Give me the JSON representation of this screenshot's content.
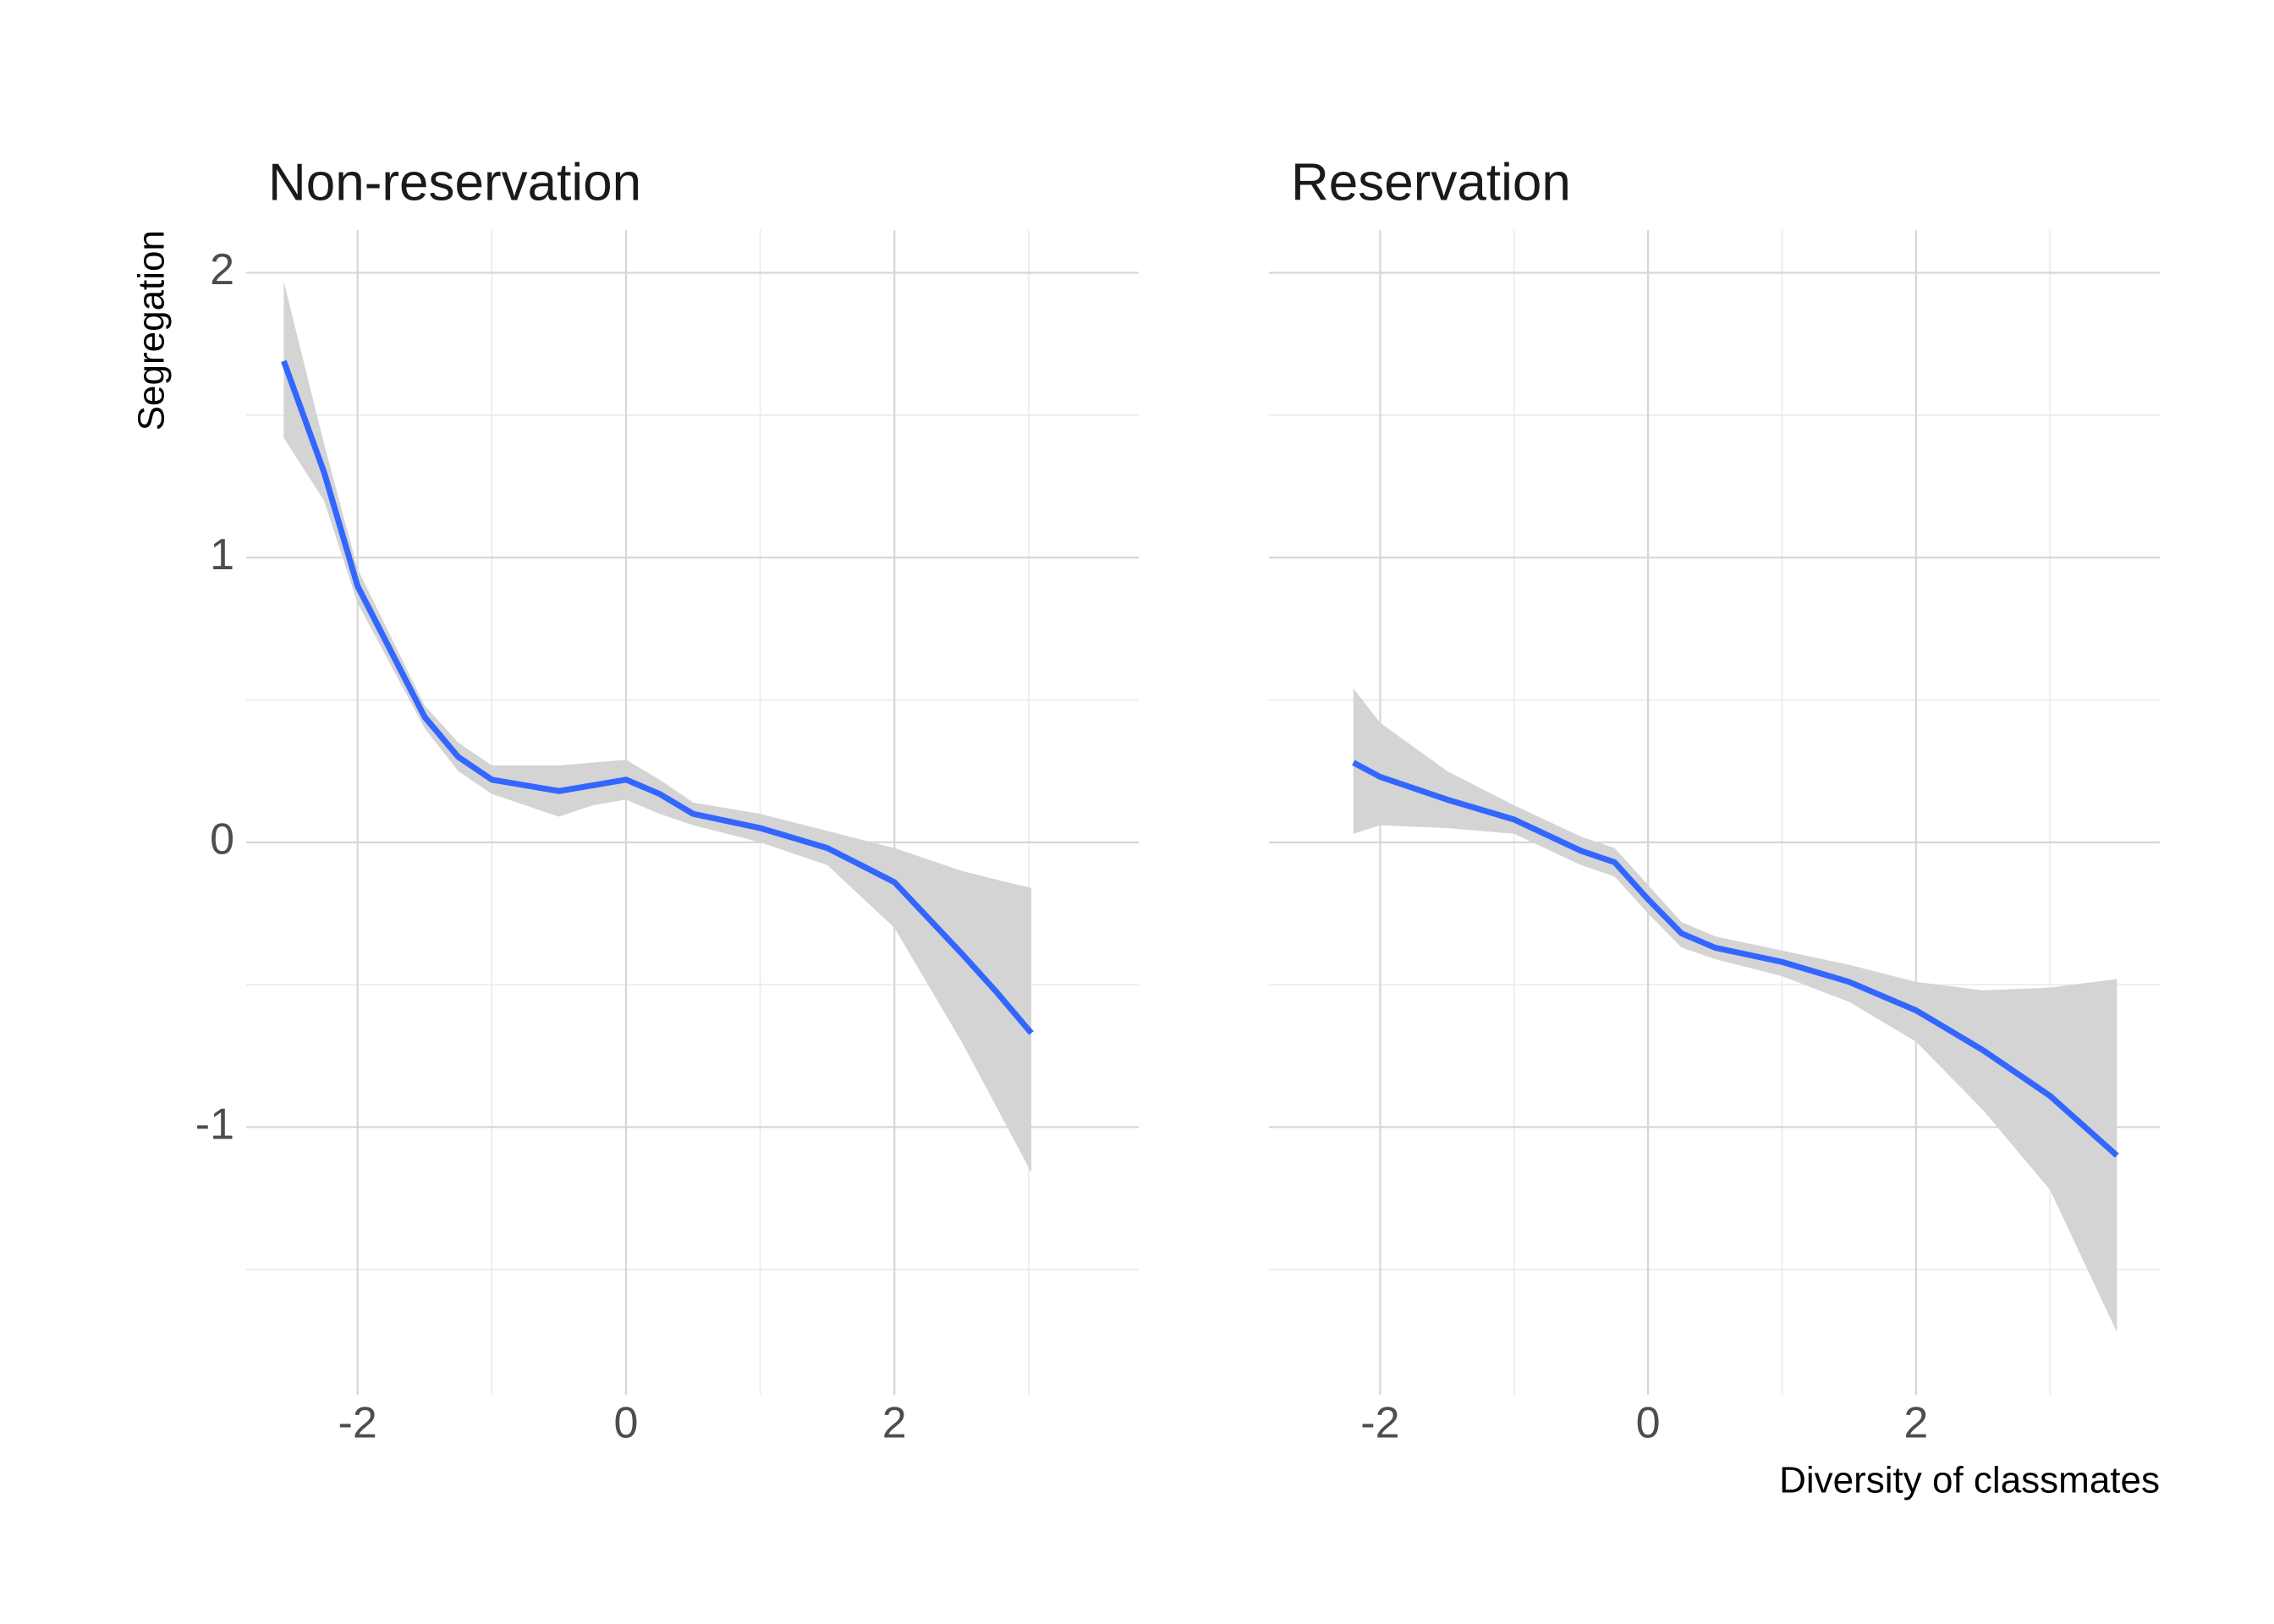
{
  "chart_data": [
    {
      "type": "line",
      "title": "Non-reservation",
      "ylabel": "Segregation",
      "xlim": [
        -2.83,
        3.82
      ],
      "ylim": [
        -1.94,
        2.15
      ],
      "xticks": [
        -2,
        0,
        2
      ],
      "yticks": [
        -1,
        0,
        1,
        2
      ],
      "minor_xticks": [
        -1,
        1,
        3
      ],
      "minor_yticks": [
        -1.5,
        -0.5,
        0.5,
        1.5
      ],
      "show_ytick_labels": true,
      "grid": true,
      "band_color": "#d4d4d4",
      "x": [
        -2.55,
        -2.25,
        -2.0,
        -1.5,
        -1.25,
        -1.0,
        -0.5,
        -0.25,
        0,
        0.25,
        0.5,
        1.0,
        1.5,
        2.0,
        2.5,
        2.75,
        3.02
      ],
      "series": [
        {
          "color": "#3366ff",
          "values": [
            1.69,
            1.3,
            0.9,
            0.44,
            0.3,
            0.22,
            0.18,
            0.2,
            0.22,
            0.17,
            0.1,
            0.05,
            -0.02,
            -0.14,
            -0.39,
            -0.52,
            -0.67
          ],
          "lower": [
            1.42,
            1.2,
            0.84,
            0.4,
            0.25,
            0.17,
            0.09,
            0.13,
            0.15,
            0.1,
            0.06,
            0.0,
            -0.08,
            -0.3,
            -0.7,
            -0.92,
            -1.16
          ],
          "upper": [
            1.97,
            1.4,
            0.96,
            0.48,
            0.35,
            0.27,
            0.27,
            0.28,
            0.29,
            0.22,
            0.14,
            0.1,
            0.04,
            -0.02,
            -0.1,
            -0.13,
            -0.16
          ]
        }
      ]
    },
    {
      "type": "line",
      "title": "Reservation",
      "xlabel": "Diversity of classmates",
      "xlim": [
        -2.83,
        3.82
      ],
      "ylim": [
        -1.94,
        2.15
      ],
      "xticks": [
        -2,
        0,
        2
      ],
      "yticks": [
        -1,
        0,
        1,
        2
      ],
      "minor_xticks": [
        -1,
        1,
        3
      ],
      "minor_yticks": [
        -1.5,
        -0.5,
        0.5,
        1.5
      ],
      "show_ytick_labels": false,
      "grid": true,
      "band_color": "#d4d4d4",
      "x": [
        -2.2,
        -2.0,
        -1.5,
        -1.0,
        -0.5,
        -0.25,
        0,
        0.25,
        0.5,
        1.0,
        1.5,
        2.0,
        2.5,
        3.0,
        3.5
      ],
      "series": [
        {
          "color": "#3366ff",
          "values": [
            0.28,
            0.23,
            0.15,
            0.08,
            -0.03,
            -0.07,
            -0.2,
            -0.32,
            -0.37,
            -0.42,
            -0.49,
            -0.59,
            -0.73,
            -0.89,
            -1.1
          ],
          "lower": [
            0.03,
            0.06,
            0.05,
            0.03,
            -0.08,
            -0.12,
            -0.25,
            -0.37,
            -0.41,
            -0.47,
            -0.56,
            -0.7,
            -0.94,
            -1.22,
            -1.72
          ],
          "upper": [
            0.54,
            0.42,
            0.25,
            0.13,
            0.02,
            -0.02,
            -0.15,
            -0.28,
            -0.33,
            -0.38,
            -0.43,
            -0.49,
            -0.52,
            -0.51,
            -0.48
          ]
        }
      ]
    }
  ]
}
